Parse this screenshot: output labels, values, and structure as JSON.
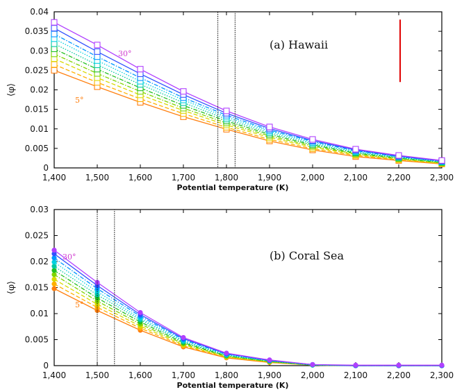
{
  "chart_data": [
    {
      "type": "line",
      "title": "(a)  Hawaii",
      "xlabel": "Potential temperature (K)",
      "ylabel": "⟨φ⟩",
      "xlim": [
        1400,
        2300
      ],
      "ylim": [
        0,
        0.04
      ],
      "x": [
        1400,
        1500,
        1600,
        1700,
        1800,
        1900,
        2000,
        2100,
        2200,
        2300
      ],
      "x_tick_labels": [
        "1,400",
        "1,500",
        "1,600",
        "1,700",
        "1,800",
        "1,900",
        "2,000",
        "2,100",
        "2,200",
        "2,300"
      ],
      "y_ticks": [
        0,
        0.005,
        0.01,
        0.015,
        0.02,
        0.025,
        0.03,
        0.035,
        0.04
      ],
      "y_tick_labels": [
        "0",
        "0.005",
        "0.01",
        "0.015",
        "0.02",
        "0.025",
        "0.03",
        "0.035",
        "0.04"
      ],
      "marker": "square",
      "series": [
        {
          "color": "#ff7f0e",
          "dash": "solid",
          "values": [
            0.025,
            0.0208,
            0.0168,
            0.0131,
            0.0099,
            0.0069,
            0.0046,
            0.0029,
            0.0019,
            0.001
          ]
        },
        {
          "color": "#ffb000",
          "dash": "dash",
          "values": [
            0.0265,
            0.0219,
            0.0177,
            0.0139,
            0.0104,
            0.0073,
            0.0049,
            0.0032,
            0.0021,
            0.0011
          ]
        },
        {
          "color": "#d9d900",
          "dash": "dash",
          "values": [
            0.028,
            0.0231,
            0.0187,
            0.0147,
            0.011,
            0.0078,
            0.0053,
            0.0034,
            0.0022,
            0.0012
          ]
        },
        {
          "color": "#7fd400",
          "dash": "dashdot",
          "values": [
            0.0292,
            0.0242,
            0.0196,
            0.0153,
            0.0115,
            0.0082,
            0.0056,
            0.0036,
            0.0024,
            0.0013
          ]
        },
        {
          "color": "#22c022",
          "dash": "dashdot",
          "values": [
            0.0305,
            0.0253,
            0.0205,
            0.016,
            0.012,
            0.0086,
            0.0059,
            0.0038,
            0.0025,
            0.0014
          ]
        },
        {
          "color": "#00c8a0",
          "dash": "dot",
          "values": [
            0.0318,
            0.0264,
            0.0214,
            0.0167,
            0.0125,
            0.009,
            0.0062,
            0.004,
            0.0027,
            0.0015
          ]
        },
        {
          "color": "#00d0e0",
          "dash": "dot",
          "values": [
            0.0331,
            0.0275,
            0.0222,
            0.0174,
            0.013,
            0.0094,
            0.0065,
            0.0042,
            0.0028,
            0.0016
          ]
        },
        {
          "color": "#0096ff",
          "dash": "dashdot",
          "values": [
            0.0343,
            0.0285,
            0.0231,
            0.018,
            0.0135,
            0.0097,
            0.0068,
            0.0044,
            0.0029,
            0.0017
          ]
        },
        {
          "color": "#3050ff",
          "dash": "solid",
          "values": [
            0.0358,
            0.0298,
            0.0241,
            0.0188,
            0.014,
            0.0101,
            0.007,
            0.0046,
            0.003,
            0.0018
          ]
        },
        {
          "color": "#b040ff",
          "dash": "solid",
          "values": [
            0.0373,
            0.0315,
            0.0253,
            0.0196,
            0.0146,
            0.0105,
            0.0073,
            0.0048,
            0.0032,
            0.0019
          ]
        }
      ],
      "annotations": {
        "upper_label": "30°",
        "lower_label": "5°"
      },
      "highlight_box_x": [
        1780,
        1820
      ],
      "vertical_bar": {
        "x": 2200,
        "y": [
          0.022,
          0.038
        ],
        "color": "#e00000"
      }
    },
    {
      "type": "line",
      "title": "(b)   Coral Sea",
      "xlabel": "Potential temperature (K)",
      "ylabel": "⟨φ⟩",
      "xlim": [
        1400,
        2300
      ],
      "ylim": [
        0,
        0.03
      ],
      "x": [
        1400,
        1500,
        1600,
        1700,
        1800,
        1900,
        2000,
        2100,
        2200,
        2300
      ],
      "x_tick_labels": [
        "1,400",
        "1,500",
        "1,600",
        "1,700",
        "1,800",
        "1,900",
        "2,000",
        "2,100",
        "2,200",
        "2,300"
      ],
      "y_ticks": [
        0,
        0.005,
        0.01,
        0.015,
        0.02,
        0.025,
        0.03
      ],
      "y_tick_labels": [
        "0",
        "0.005",
        "0.01",
        "0.015",
        "0.02",
        "0.025",
        "0.03"
      ],
      "marker": "circle",
      "series": [
        {
          "color": "#ff7f0e",
          "dash": "solid",
          "values": [
            0.0148,
            0.0106,
            0.0068,
            0.0036,
            0.0015,
            0.0006,
            0.0001,
            0,
            0,
            0
          ]
        },
        {
          "color": "#ffb000",
          "dash": "dash",
          "values": [
            0.0157,
            0.0112,
            0.0072,
            0.0038,
            0.0016,
            0.0007,
            0.0001,
            0,
            0,
            0
          ]
        },
        {
          "color": "#d9d900",
          "dash": "dash",
          "values": [
            0.0166,
            0.0118,
            0.0076,
            0.004,
            0.0017,
            0.0007,
            0.0001,
            0,
            0,
            0
          ]
        },
        {
          "color": "#7fd400",
          "dash": "dashdot",
          "values": [
            0.0175,
            0.0124,
            0.008,
            0.0042,
            0.0018,
            0.0008,
            0.0001,
            0,
            0,
            0
          ]
        },
        {
          "color": "#22c022",
          "dash": "dashdot",
          "values": [
            0.0183,
            0.013,
            0.0084,
            0.0044,
            0.0019,
            0.0008,
            0.0001,
            0,
            0,
            0
          ]
        },
        {
          "color": "#00c8a0",
          "dash": "dot",
          "values": [
            0.0191,
            0.0136,
            0.0088,
            0.0046,
            0.002,
            0.0009,
            0.0001,
            0,
            0,
            0
          ]
        },
        {
          "color": "#00d0e0",
          "dash": "dot",
          "values": [
            0.0199,
            0.0142,
            0.0091,
            0.0048,
            0.0021,
            0.0009,
            0.0001,
            0,
            0,
            0
          ]
        },
        {
          "color": "#0096ff",
          "dash": "dashdot",
          "values": [
            0.0207,
            0.0148,
            0.0095,
            0.005,
            0.0022,
            0.001,
            0.0002,
            0,
            0,
            0
          ]
        },
        {
          "color": "#3050ff",
          "dash": "solid",
          "values": [
            0.0215,
            0.0154,
            0.0098,
            0.0052,
            0.0023,
            0.001,
            0.0002,
            0,
            0,
            0
          ]
        },
        {
          "color": "#b040ff",
          "dash": "solid",
          "values": [
            0.0222,
            0.016,
            0.0102,
            0.0054,
            0.0024,
            0.0011,
            0.0002,
            0.0001,
            0.0001,
            0.0001
          ]
        }
      ],
      "annotations": {
        "upper_label": "30°",
        "lower_label": "5°"
      },
      "highlight_box_x": [
        1500,
        1540
      ]
    }
  ]
}
